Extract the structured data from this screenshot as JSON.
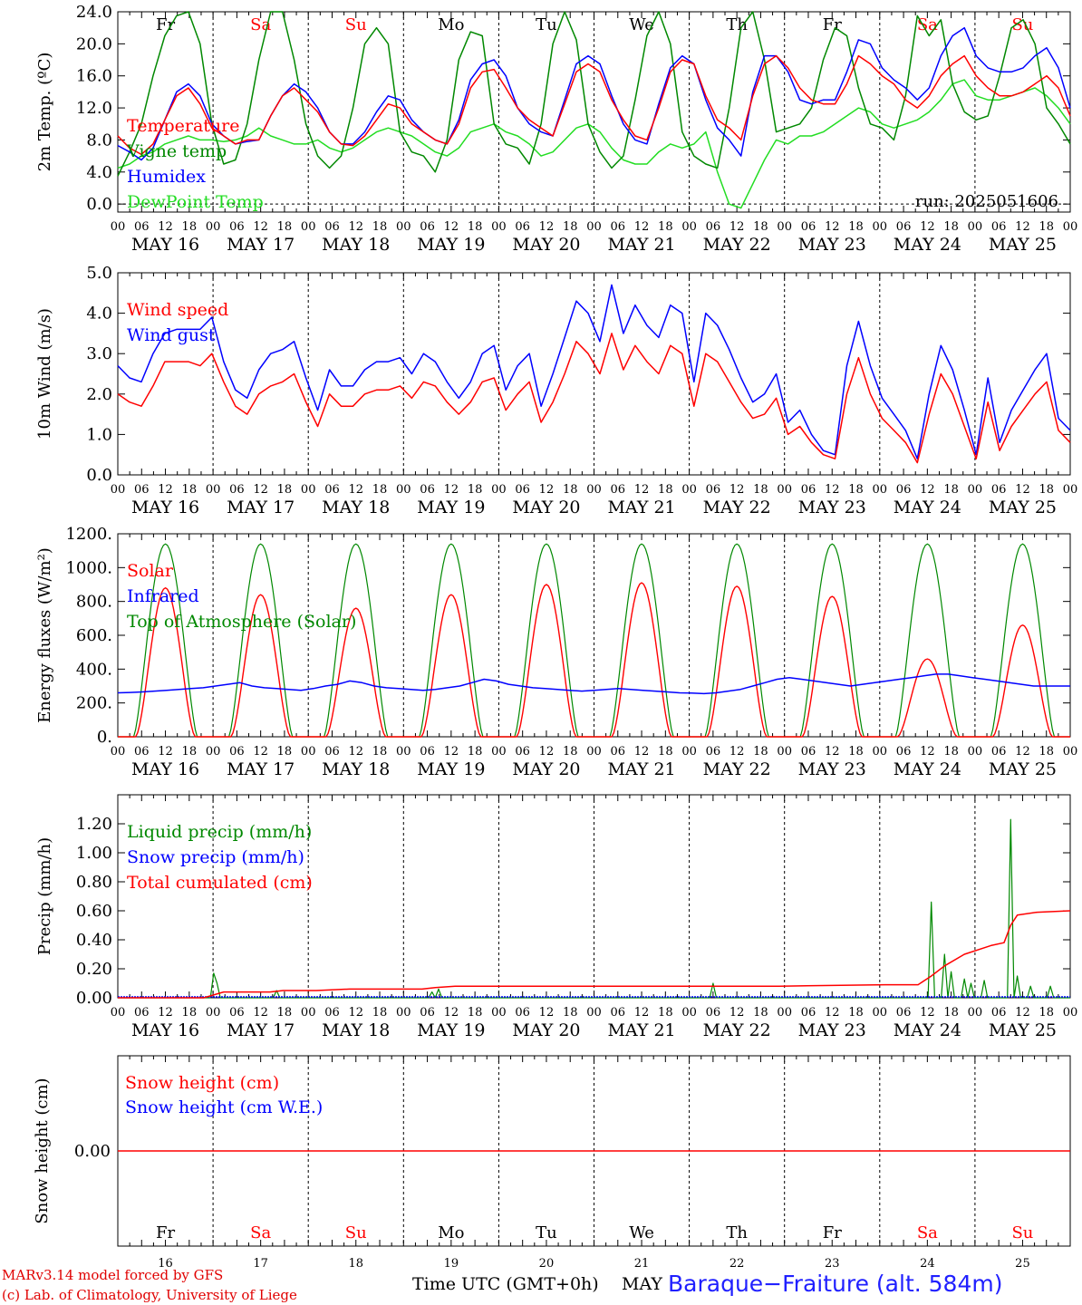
{
  "chart_data": [
    {
      "type": "line",
      "ylabel": "2m Temp. (ºC)",
      "ylim": [
        -1,
        24
      ],
      "yticks": [
        "0.0",
        "4.0",
        "8.0",
        "12.0",
        "16.0",
        "20.0",
        "24.0"
      ],
      "day_names": [
        "Fr",
        "Sa",
        "Su",
        "Mo",
        "Tu",
        "We",
        "Th",
        "Fr",
        "Sa",
        "Su"
      ],
      "annotation": "run: 2025051606",
      "series": [
        {
          "name": "Temperature",
          "color": "#ff0000",
          "values": [
            8.5,
            7.0,
            6.2,
            7.5,
            10.5,
            13.5,
            14.5,
            12.5,
            9.5,
            8.5,
            7.5,
            8.0,
            8.0,
            11.0,
            13.5,
            14.5,
            13.0,
            11.5,
            9.0,
            7.5,
            7.3,
            8.5,
            10.5,
            12.5,
            12.0,
            10.0,
            9.0,
            8.0,
            7.5,
            10.0,
            14.5,
            16.5,
            16.8,
            14.5,
            12.0,
            10.5,
            9.5,
            8.5,
            12.5,
            16.5,
            17.5,
            16.5,
            13.0,
            10.5,
            8.5,
            8.0,
            12.0,
            16.5,
            18.0,
            17.5,
            13.5,
            10.5,
            9.5,
            8.0,
            13.5,
            17.5,
            18.5,
            17.0,
            14.5,
            13.0,
            12.5,
            12.5,
            15.0,
            18.5,
            17.5,
            16.0,
            15.0,
            13.0,
            12.0,
            13.5,
            16.0,
            17.5,
            18.5,
            16.0,
            14.5,
            13.5,
            13.5,
            14.0,
            15.0,
            16.0,
            14.5,
            11.0
          ]
        },
        {
          "name": "Vigne temp",
          "color": "#008800",
          "values": [
            3.5,
            6.5,
            10.0,
            16.0,
            21.0,
            23.5,
            24.0,
            20.0,
            10.0,
            5.0,
            5.5,
            10.0,
            18.0,
            24.0,
            24.0,
            18.0,
            10.0,
            6.0,
            4.5,
            6.0,
            12.0,
            20.0,
            22.0,
            20.0,
            9.0,
            6.5,
            6.0,
            4.0,
            8.0,
            18.0,
            21.5,
            21.0,
            10.0,
            7.5,
            7.0,
            5.0,
            10.0,
            20.0,
            24.0,
            20.5,
            10.0,
            6.5,
            4.5,
            6.0,
            13.0,
            21.0,
            24.0,
            20.0,
            9.0,
            6.0,
            5.0,
            4.5,
            12.0,
            22.0,
            24.0,
            18.0,
            9.0,
            9.5,
            10.0,
            12.0,
            18.0,
            22.0,
            21.0,
            14.5,
            10.0,
            9.5,
            8.0,
            13.5,
            23.5,
            21.0,
            23.0,
            15.0,
            11.5,
            10.5,
            11.0,
            16.0,
            22.0,
            23.0,
            20.0,
            12.0,
            10.0,
            7.5
          ]
        },
        {
          "name": "Humidex",
          "color": "#0000ff",
          "values": [
            7.3,
            6.5,
            5.5,
            7.0,
            10.5,
            14.0,
            15.0,
            13.5,
            10.0,
            8.5,
            7.5,
            7.8,
            8.0,
            11.0,
            13.5,
            15.0,
            14.0,
            12.0,
            9.0,
            7.5,
            7.5,
            9.0,
            11.5,
            13.5,
            13.0,
            10.5,
            9.0,
            8.0,
            7.5,
            10.5,
            15.5,
            17.5,
            18.0,
            16.0,
            12.0,
            10.0,
            9.0,
            8.5,
            13.0,
            17.5,
            18.5,
            17.5,
            13.5,
            10.0,
            8.0,
            7.5,
            12.5,
            17.0,
            18.5,
            17.5,
            13.0,
            9.5,
            8.0,
            6.0,
            14.0,
            18.5,
            18.5,
            16.5,
            13.0,
            12.5,
            13.0,
            13.0,
            16.5,
            20.5,
            20.0,
            17.0,
            15.5,
            14.5,
            13.0,
            14.5,
            18.5,
            21.0,
            22.0,
            18.5,
            17.0,
            16.5,
            16.5,
            17.0,
            18.5,
            19.5,
            17.0,
            12.0
          ]
        },
        {
          "name": "DewPoint Temp",
          "color": "#22dd22",
          "values": [
            4.5,
            5.0,
            6.0,
            6.5,
            7.5,
            8.0,
            8.5,
            8.0,
            8.0,
            7.8,
            8.0,
            8.5,
            9.5,
            8.5,
            8.0,
            7.5,
            7.5,
            8.0,
            7.0,
            6.5,
            7.0,
            8.0,
            9.0,
            9.5,
            9.0,
            8.5,
            7.5,
            6.5,
            6.0,
            7.0,
            9.0,
            9.5,
            10.0,
            9.0,
            8.5,
            7.5,
            6.0,
            6.5,
            8.0,
            9.5,
            10.0,
            9.0,
            7.0,
            5.5,
            5.0,
            5.0,
            6.5,
            7.5,
            7.0,
            7.5,
            9.0,
            4.0,
            0.0,
            -0.5,
            2.5,
            5.5,
            8.0,
            7.5,
            8.5,
            8.5,
            9.0,
            10.0,
            11.0,
            12.0,
            11.5,
            10.0,
            9.5,
            10.0,
            10.5,
            11.5,
            13.0,
            15.0,
            15.5,
            13.5,
            13.0,
            13.0,
            13.5,
            14.0,
            14.5,
            13.5,
            12.0,
            10.0
          ]
        }
      ]
    },
    {
      "type": "line",
      "ylabel": "10m Wind (m/s)",
      "ylim": [
        0,
        5
      ],
      "yticks": [
        "0.0",
        "1.0",
        "2.0",
        "3.0",
        "4.0",
        "5.0"
      ],
      "series": [
        {
          "name": "Wind speed",
          "color": "#ff0000",
          "values": [
            2.0,
            1.8,
            1.7,
            2.2,
            2.8,
            2.8,
            2.8,
            2.7,
            3.0,
            2.3,
            1.7,
            1.5,
            2.0,
            2.2,
            2.3,
            2.5,
            1.8,
            1.2,
            2.0,
            1.7,
            1.7,
            2.0,
            2.1,
            2.1,
            2.2,
            1.9,
            2.3,
            2.2,
            1.8,
            1.5,
            1.8,
            2.3,
            2.4,
            1.6,
            2.0,
            2.3,
            1.3,
            1.8,
            2.5,
            3.3,
            3.0,
            2.5,
            3.5,
            2.6,
            3.2,
            2.8,
            2.5,
            3.2,
            3.0,
            1.7,
            3.0,
            2.8,
            2.3,
            1.8,
            1.4,
            1.5,
            1.9,
            1.0,
            1.2,
            0.8,
            0.5,
            0.4,
            2.0,
            2.9,
            2.0,
            1.4,
            1.1,
            0.8,
            0.3,
            1.5,
            2.5,
            2.0,
            1.2,
            0.4,
            1.8,
            0.6,
            1.2,
            1.6,
            2.0,
            2.3,
            1.1,
            0.8
          ]
        },
        {
          "name": "Wind gust",
          "color": "#0000ff",
          "values": [
            2.7,
            2.4,
            2.3,
            3.0,
            3.5,
            3.6,
            3.6,
            3.6,
            3.9,
            2.8,
            2.1,
            1.9,
            2.6,
            3.0,
            3.1,
            3.3,
            2.4,
            1.6,
            2.6,
            2.2,
            2.2,
            2.6,
            2.8,
            2.8,
            2.9,
            2.5,
            3.0,
            2.8,
            2.3,
            1.9,
            2.3,
            3.0,
            3.2,
            2.1,
            2.7,
            3.0,
            1.7,
            2.5,
            3.4,
            4.3,
            4.0,
            3.3,
            4.7,
            3.5,
            4.2,
            3.7,
            3.4,
            4.2,
            4.0,
            2.3,
            4.0,
            3.7,
            3.1,
            2.4,
            1.8,
            2.0,
            2.5,
            1.3,
            1.6,
            1.0,
            0.6,
            0.5,
            2.7,
            3.8,
            2.7,
            1.9,
            1.5,
            1.1,
            0.4,
            2.0,
            3.2,
            2.6,
            1.6,
            0.5,
            2.4,
            0.8,
            1.6,
            2.1,
            2.6,
            3.0,
            1.4,
            1.1
          ]
        }
      ]
    },
    {
      "type": "line",
      "ylabel": "Energy fluxes (W/m²)",
      "ylim": [
        0,
        1200
      ],
      "yticks": [
        "0.",
        "200.",
        "400.",
        "600.",
        "800.",
        "1000.",
        "1200."
      ],
      "series": [
        {
          "name": "Solar",
          "color": "#ff0000",
          "peaks": [
            880,
            840,
            760,
            840,
            900,
            910,
            890,
            830,
            460,
            660
          ]
        },
        {
          "name": "Infrared",
          "color": "#0000ff",
          "values": [
            260,
            262,
            265,
            270,
            275,
            280,
            285,
            290,
            300,
            310,
            320,
            300,
            290,
            285,
            280,
            275,
            285,
            300,
            310,
            330,
            320,
            300,
            290,
            285,
            280,
            275,
            280,
            290,
            300,
            320,
            340,
            330,
            310,
            300,
            290,
            285,
            280,
            275,
            270,
            275,
            280,
            285,
            280,
            275,
            270,
            265,
            260,
            258,
            255,
            260,
            270,
            280,
            300,
            320,
            340,
            350,
            340,
            330,
            320,
            310,
            300,
            310,
            320,
            330,
            340,
            350,
            360,
            370,
            370,
            360,
            350,
            340,
            330,
            320,
            310,
            300,
            300,
            300,
            300
          ]
        },
        {
          "name": "Top of Atmosphere (Solar)",
          "color": "#008800",
          "peak": 1140
        }
      ]
    },
    {
      "type": "line",
      "ylabel": "Precip (mm/h)",
      "ylim": [
        0,
        1.4
      ],
      "yticks": [
        "0.00",
        "0.20",
        "0.40",
        "0.60",
        "0.80",
        "1.00",
        "1.20"
      ],
      "series": [
        {
          "name": "Liquid precip (mm/h)",
          "color": "#008800",
          "spikes": [
            [
              29,
              0.17
            ],
            [
              30,
              0.1
            ],
            [
              48,
              0.05
            ],
            [
              95,
              0.04
            ],
            [
              97,
              0.06
            ],
            [
              180,
              0.1
            ],
            [
              246,
              0.66
            ],
            [
              250,
              0.3
            ],
            [
              252,
              0.18
            ],
            [
              256,
              0.13
            ],
            [
              258,
              0.1
            ],
            [
              262,
              0.12
            ],
            [
              270,
              1.23
            ],
            [
              272,
              0.15
            ],
            [
              276,
              0.08
            ],
            [
              282,
              0.08
            ]
          ]
        },
        {
          "name": "Snow precip (mm/h)",
          "color": "#0000ff",
          "values": [
            0
          ]
        },
        {
          "name": "Total cumulated (cm)",
          "color": "#ff0000",
          "points": [
            [
              0,
              0
            ],
            [
              26,
              0
            ],
            [
              32,
              0.04
            ],
            [
              46,
              0.04
            ],
            [
              50,
              0.05
            ],
            [
              60,
              0.05
            ],
            [
              70,
              0.06
            ],
            [
              92,
              0.06
            ],
            [
              96,
              0.07
            ],
            [
              102,
              0.08
            ],
            [
              200,
              0.08
            ],
            [
              232,
              0.09
            ],
            [
              242,
              0.09
            ],
            [
              246,
              0.15
            ],
            [
              250,
              0.22
            ],
            [
              256,
              0.3
            ],
            [
              264,
              0.36
            ],
            [
              268,
              0.38
            ],
            [
              270,
              0.5
            ],
            [
              272,
              0.57
            ],
            [
              278,
              0.59
            ],
            [
              288,
              0.6
            ]
          ]
        }
      ]
    },
    {
      "type": "line",
      "ylabel": "Snow height (cm)",
      "yticks": [
        "0.00"
      ],
      "series": [
        {
          "name": "Snow height (cm)",
          "color": "#ff0000",
          "values": [
            0,
            0
          ]
        },
        {
          "name": "Snow height (cm W.E.)",
          "color": "#0000ff",
          "values": [
            0,
            0
          ]
        }
      ]
    }
  ],
  "x_axis": {
    "hour_labels": [
      "00",
      "06",
      "12",
      "18"
    ],
    "date_labels": [
      "MAY 16",
      "MAY 17",
      "MAY 18",
      "MAY 19",
      "MAY 20",
      "MAY 21",
      "MAY 22",
      "MAY 23",
      "MAY 24",
      "MAY 25"
    ],
    "bottom_day_numbers": [
      "16",
      "17",
      "18",
      "19",
      "20",
      "21",
      "22",
      "23",
      "24",
      "25"
    ],
    "bottom_day_names": [
      "Fr",
      "Sa",
      "Su",
      "Mo",
      "Tu",
      "We",
      "Th",
      "Fr",
      "Sa",
      "Su"
    ],
    "weekend_color": "#ff0000"
  },
  "footer": {
    "model": "MARv3.14 model forced by GFS",
    "copyright": "(c) Lab. of Climatology, University of Liege",
    "time_label": "Time UTC (GMT+0h)",
    "month": "MAY",
    "station": "Baraque−Fraiture (alt. 584m)"
  }
}
